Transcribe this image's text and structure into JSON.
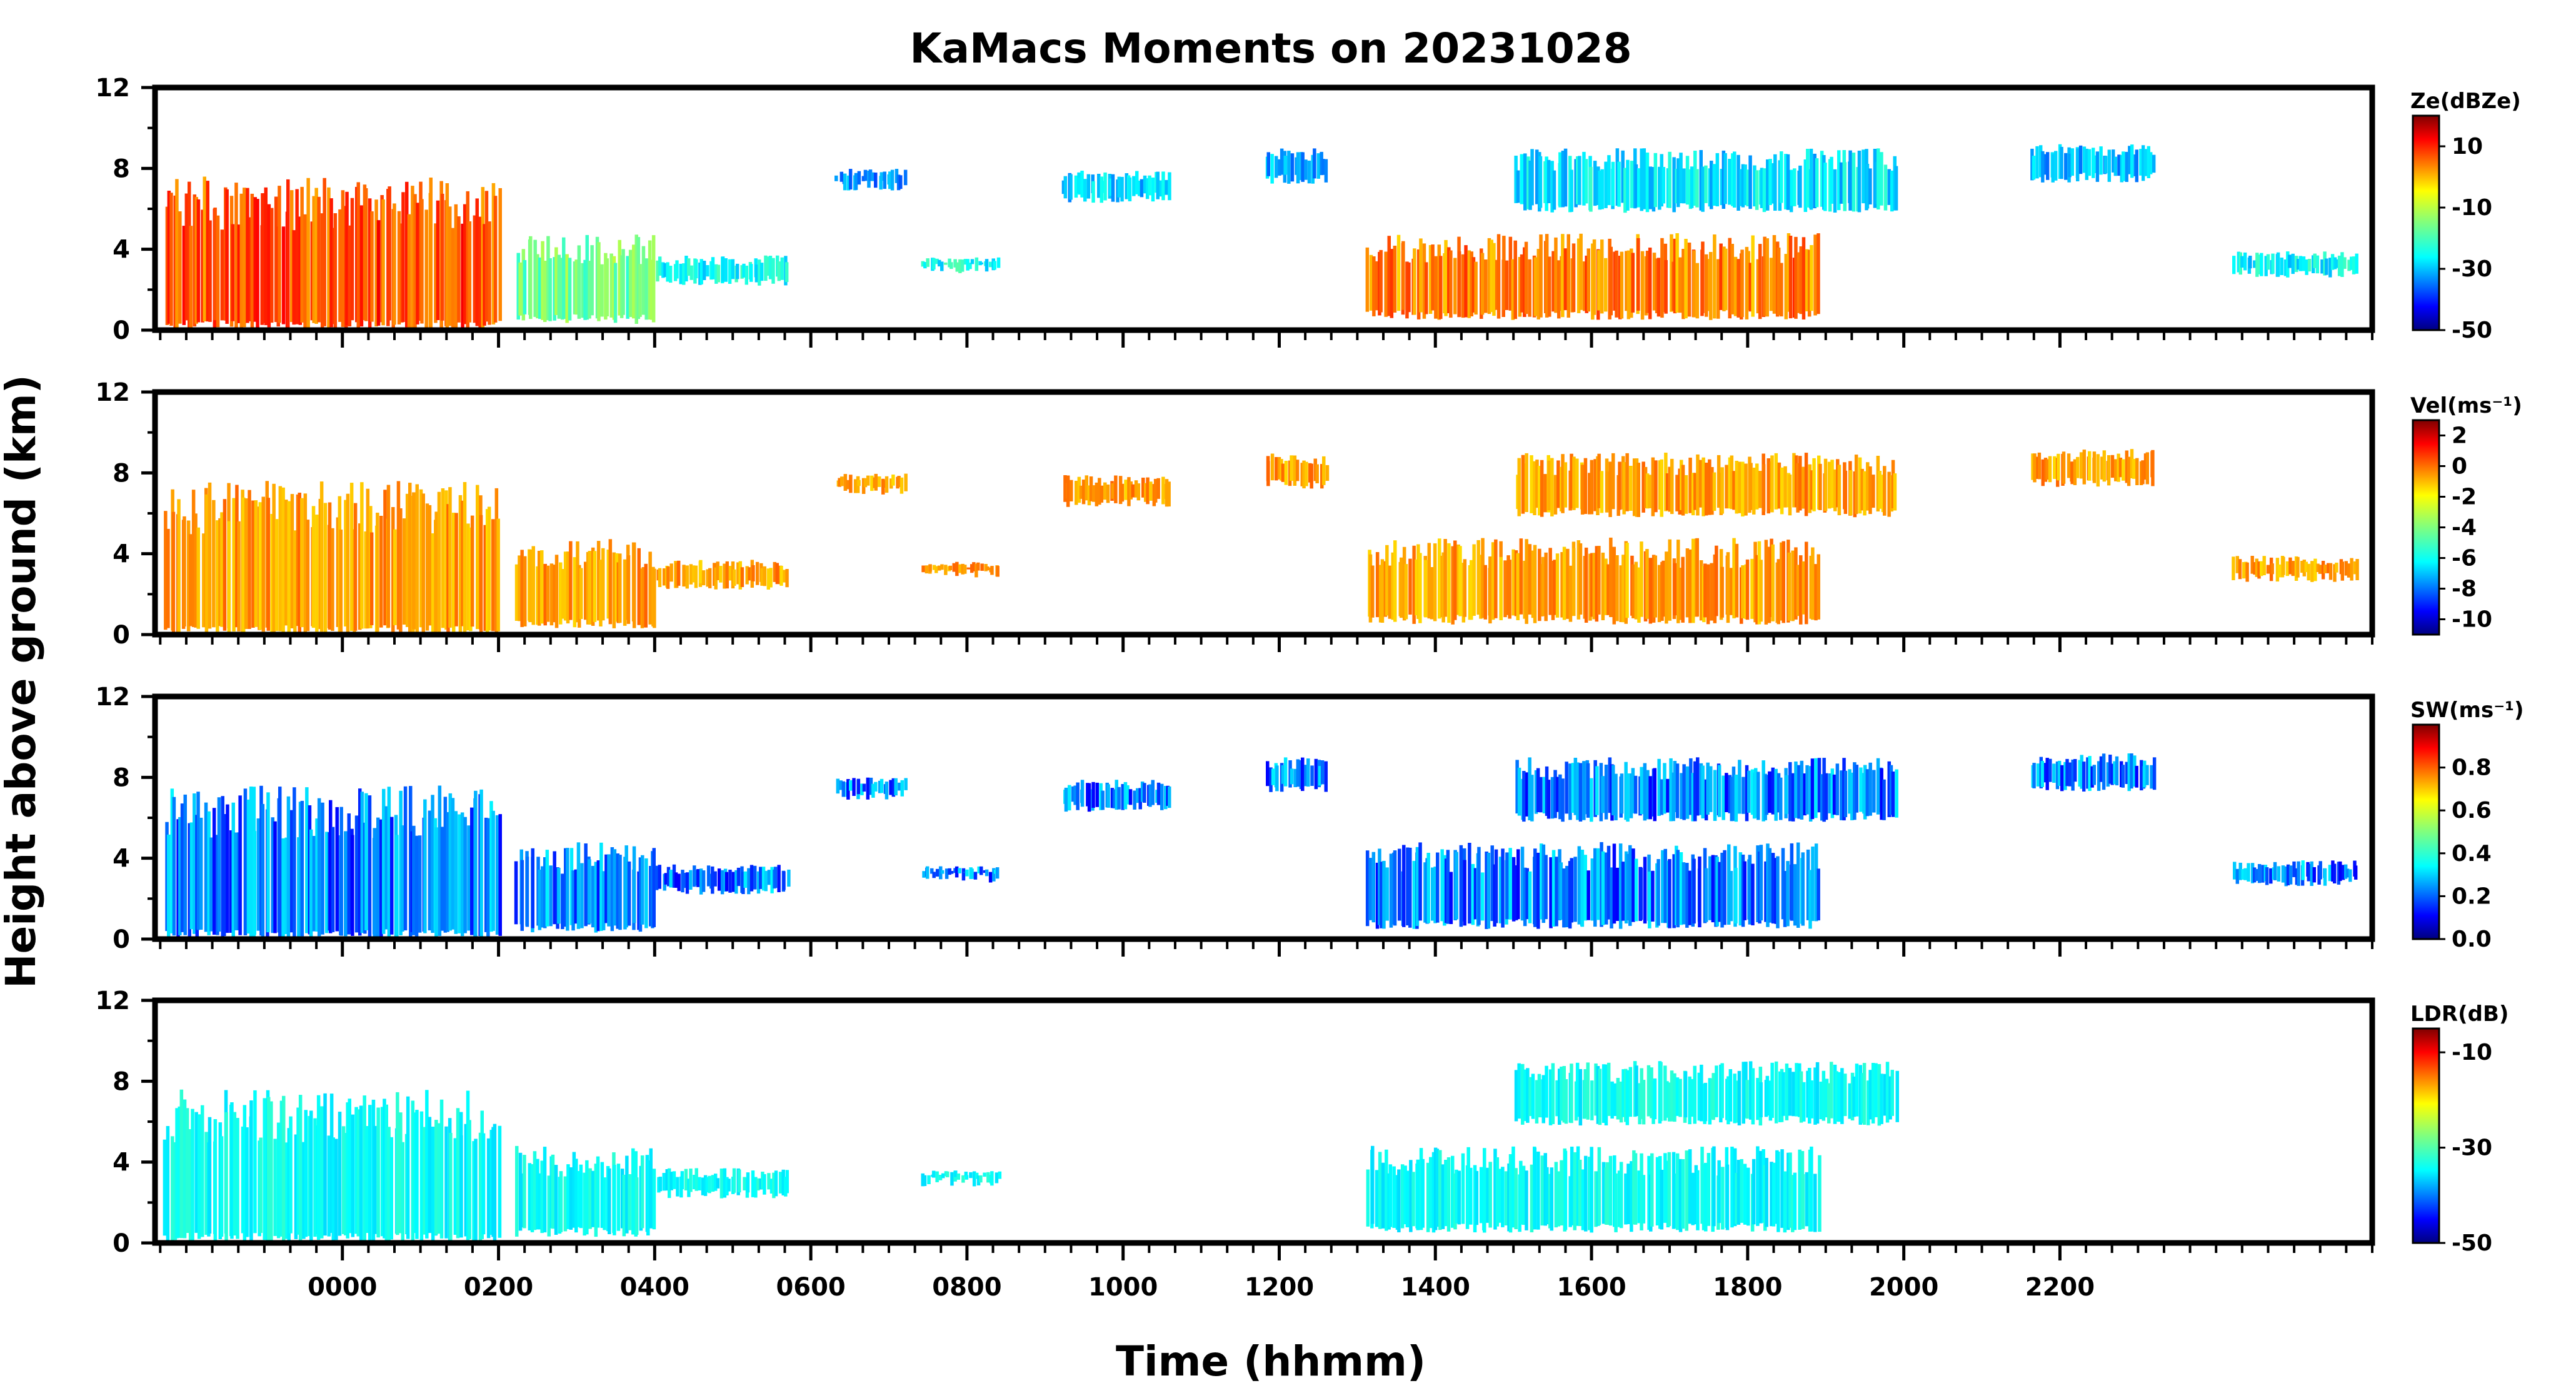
{
  "chart_data": {
    "type": "heatmap",
    "title": "KaMacs Moments on 20231028",
    "xlabel": "Time (hhmm)",
    "ylabel": "Height above ground (km)",
    "x_ticks": [
      "0000",
      "0200",
      "0400",
      "0600",
      "0800",
      "1000",
      "1200",
      "1400",
      "1600",
      "1800",
      "2000",
      "2200"
    ],
    "x_range_hours": [
      -2.4,
      26.0
    ],
    "panels": [
      {
        "name": "reflectivity",
        "colorbar_label": "Ze(dBZe)",
        "colorbar_ticks": [
          "10",
          "-10",
          "-30",
          "-50"
        ],
        "colorbar_range": [
          -50,
          20
        ],
        "ylim": [
          0,
          12
        ],
        "y_ticks": [
          "0",
          "4",
          "8",
          "12"
        ]
      },
      {
        "name": "velocity",
        "colorbar_label": "Vel(ms⁻¹)",
        "colorbar_ticks": [
          "2",
          "0",
          "-2",
          "-4",
          "-6",
          "-8",
          "-10"
        ],
        "colorbar_range": [
          -11,
          3
        ],
        "ylim": [
          0,
          12
        ],
        "y_ticks": [
          "0",
          "4",
          "8",
          "12"
        ]
      },
      {
        "name": "spectrum-width",
        "colorbar_label": "SW(ms⁻¹)",
        "colorbar_ticks": [
          "0.8",
          "0.6",
          "0.4",
          "0.2",
          "0.0"
        ],
        "colorbar_range": [
          0,
          1
        ],
        "ylim": [
          0,
          12
        ],
        "y_ticks": [
          "0",
          "4",
          "8",
          "12"
        ]
      },
      {
        "name": "ldr",
        "colorbar_label": "LDR(dB)",
        "colorbar_ticks": [
          "-10",
          "-30",
          "-50"
        ],
        "colorbar_range": [
          -50,
          -5
        ],
        "ylim": [
          0,
          12
        ],
        "y_ticks": [
          "0",
          "4",
          "8",
          "12"
        ]
      }
    ]
  },
  "colors": {
    "frame": "#000000",
    "jet": [
      "#00007f",
      "#0000ff",
      "#007fff",
      "#00ffff",
      "#7fff7f",
      "#ffff00",
      "#ff7f00",
      "#ff0000",
      "#7f0000"
    ]
  }
}
